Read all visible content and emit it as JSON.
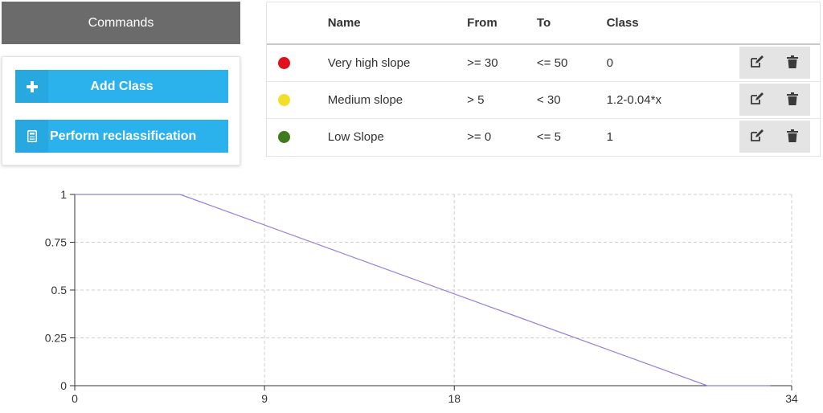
{
  "commands": {
    "header": "Commands",
    "buttons": [
      {
        "label": "Add Class",
        "icon": "plus-icon"
      },
      {
        "label": "Perform reclassification",
        "icon": "calculator-icon"
      }
    ]
  },
  "table": {
    "headers": [
      "Name",
      "From",
      "To",
      "Class"
    ],
    "rows": [
      {
        "color": "#e0101e",
        "name": "Very high slope",
        "from": ">= 30",
        "to": "<= 50",
        "class": "0"
      },
      {
        "color": "#f2e028",
        "name": "Medium slope",
        "from": "> 5",
        "to": "< 30",
        "class": "1.2-0.04*x"
      },
      {
        "color": "#3f7a1c",
        "name": "Low Slope",
        "from": ">= 0",
        "to": "<= 5",
        "class": "1"
      }
    ],
    "action_icons": [
      "edit-icon",
      "trash-icon"
    ]
  },
  "chart_data": {
    "type": "line",
    "xlim": [
      0,
      34
    ],
    "ylim": [
      0,
      1
    ],
    "x_ticks": [
      "0",
      "9",
      "18",
      "34"
    ],
    "y_ticks": [
      "0",
      "0.25",
      "0.5",
      "0.75",
      "1"
    ],
    "grid": true,
    "line_color": "#8c84e0",
    "series": [
      {
        "x": [
          0,
          5,
          30,
          33
        ],
        "y": [
          1,
          1,
          0,
          0
        ]
      }
    ]
  }
}
